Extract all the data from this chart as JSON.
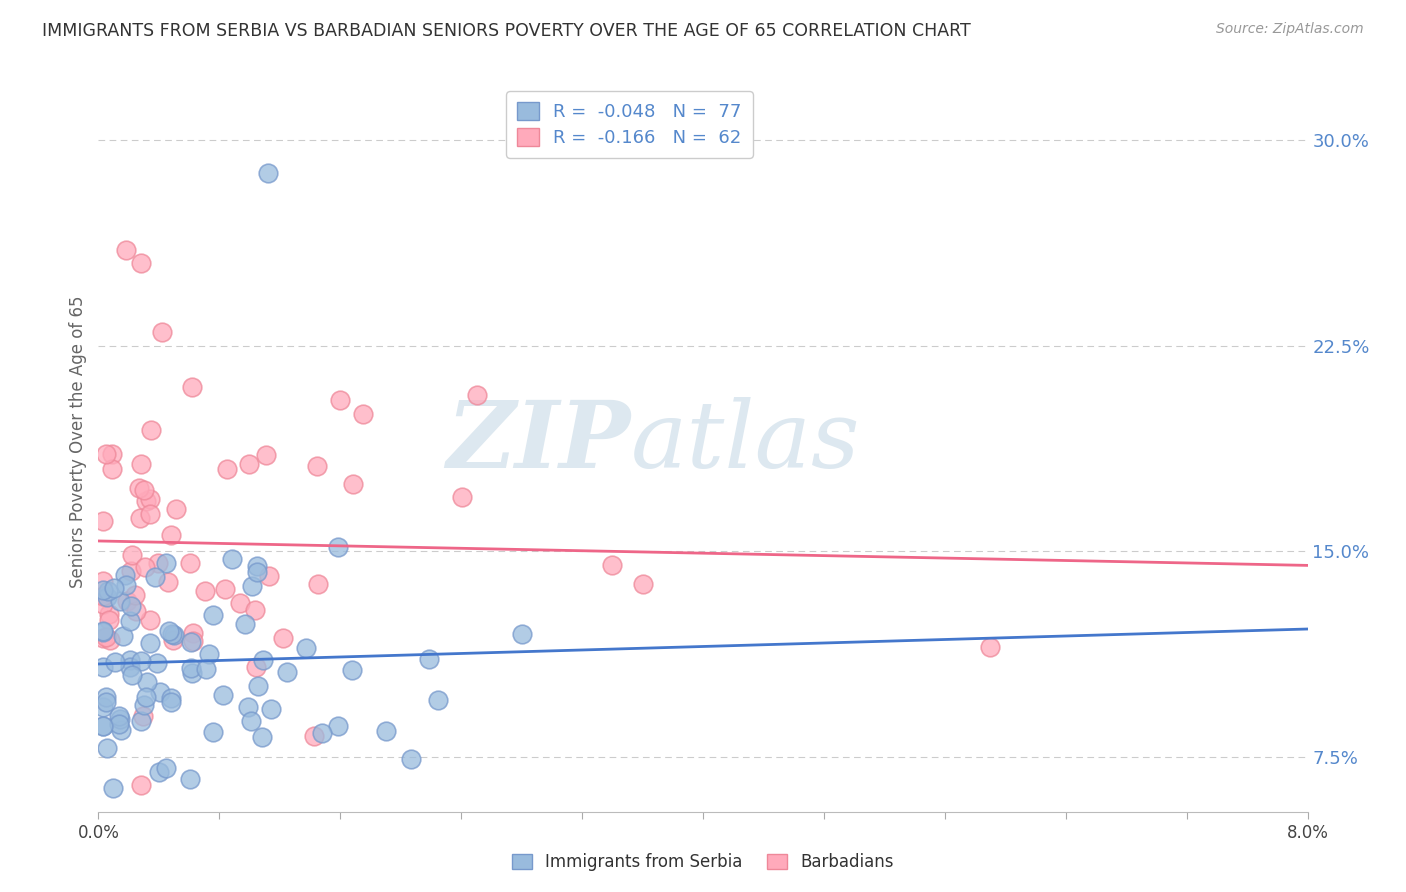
{
  "title": "IMMIGRANTS FROM SERBIA VS BARBADIAN SENIORS POVERTY OVER THE AGE OF 65 CORRELATION CHART",
  "source": "Source: ZipAtlas.com",
  "xlabel_blue": "Immigrants from Serbia",
  "xlabel_pink": "Barbadians",
  "ylabel": "Seniors Poverty Over the Age of 65",
  "watermark_zip": "ZIP",
  "watermark_atlas": "atlas",
  "blue_R": -0.048,
  "blue_N": 77,
  "pink_R": -0.166,
  "pink_N": 62,
  "xlim": [
    0.0,
    8.0
  ],
  "ylim": [
    5.5,
    32.5
  ],
  "y_ticks_right": [
    7.5,
    15.0,
    22.5,
    30.0
  ],
  "blue_color": "#99bbdd",
  "blue_edge_color": "#7799cc",
  "pink_color": "#ffaabb",
  "pink_edge_color": "#ee8899",
  "blue_line_color": "#4477cc",
  "pink_line_color": "#ee6688",
  "background_color": "#ffffff",
  "grid_color": "#cccccc",
  "title_color": "#333333",
  "source_color": "#999999",
  "axis_tick_color": "#5588cc",
  "ylabel_color": "#666666",
  "watermark_color": "#dde8f0"
}
